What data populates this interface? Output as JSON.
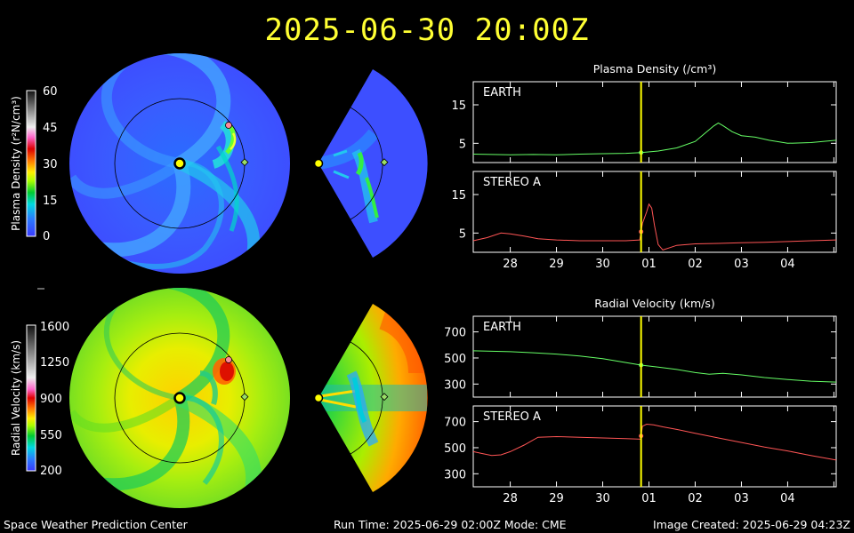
{
  "header": {
    "timestamp": "2025-06-30  20:00Z"
  },
  "footer": {
    "org": "Space Weather Prediction Center",
    "run": "Run Time: 2025-06-29 02:00Z  Mode: CME",
    "created": "Image Created: 2025-06-29 04:23Z"
  },
  "colorbars": {
    "density": {
      "label": "Plasma Density (r²N/cm³)",
      "ticks": [
        "60",
        "45",
        "30",
        "15",
        "0"
      ]
    },
    "velocity": {
      "label": "Radial Velocity (km/s)",
      "ticks": [
        "1600",
        "1250",
        "900",
        "550",
        "200"
      ]
    }
  },
  "colors": {
    "earth": "#66ff66",
    "stereo": "#ff5555",
    "time_marker": "#ffff00",
    "title": "#ffff33"
  },
  "chart_data": [
    {
      "type": "line",
      "title": "Plasma Density (/cm³)",
      "panel": "EARTH",
      "x_tick_labels": [
        "28",
        "29",
        "30",
        "01",
        "02",
        "03",
        "04"
      ],
      "xlim": [
        27.2,
        35.05
      ],
      "ylim": [
        0,
        21
      ],
      "y_ticks": [
        5,
        15
      ],
      "current_time": 30.83,
      "series": [
        {
          "color": "#66ff66",
          "x": [
            27.2,
            28,
            28.5,
            29,
            29.5,
            30,
            30.5,
            30.83,
            31.2,
            31.6,
            32,
            32.2,
            32.4,
            32.5,
            32.6,
            32.8,
            33,
            33.3,
            33.6,
            34,
            34.5,
            35.05
          ],
          "y": [
            2.2,
            2.0,
            2.1,
            2.0,
            2.2,
            2.3,
            2.4,
            2.6,
            3.0,
            3.8,
            5.5,
            7.5,
            9.5,
            10.3,
            9.6,
            8.0,
            7.0,
            6.6,
            5.8,
            5.0,
            5.2,
            5.8
          ]
        }
      ]
    },
    {
      "type": "line",
      "panel": "STEREO A",
      "x_tick_labels": [
        "28",
        "29",
        "30",
        "01",
        "02",
        "03",
        "04"
      ],
      "xlim": [
        27.2,
        35.05
      ],
      "ylim": [
        0,
        21
      ],
      "y_ticks": [
        5,
        15
      ],
      "current_time": 30.83,
      "series": [
        {
          "color": "#ff5555",
          "x": [
            27.2,
            27.5,
            27.8,
            28,
            28.3,
            28.6,
            29,
            29.5,
            30,
            30.5,
            30.8,
            30.86,
            30.95,
            31.0,
            31.06,
            31.12,
            31.2,
            31.3,
            31.45,
            31.6,
            32,
            32.5,
            33,
            33.5,
            34,
            34.5,
            35.05
          ],
          "y": [
            3.0,
            3.8,
            5.0,
            4.8,
            4.2,
            3.5,
            3.2,
            3.0,
            3.0,
            3.0,
            3.2,
            7.5,
            10.5,
            12.5,
            11.5,
            7.0,
            2.0,
            0.6,
            1.2,
            1.8,
            2.2,
            2.3,
            2.5,
            2.6,
            2.8,
            3.0,
            3.2
          ]
        }
      ]
    },
    {
      "type": "line",
      "title": "Radial Velocity (km/s)",
      "panel": "EARTH",
      "x_tick_labels": [
        "28",
        "29",
        "30",
        "01",
        "02",
        "03",
        "04"
      ],
      "xlim": [
        27.2,
        35.05
      ],
      "ylim": [
        200,
        820
      ],
      "y_ticks": [
        300,
        500,
        700
      ],
      "current_time": 30.83,
      "series": [
        {
          "color": "#66ff66",
          "x": [
            27.2,
            28,
            28.5,
            29,
            29.5,
            30,
            30.5,
            30.83,
            31.2,
            31.6,
            32,
            32.3,
            32.6,
            33,
            33.5,
            34,
            34.5,
            35.05
          ],
          "y": [
            555,
            548,
            540,
            530,
            515,
            495,
            465,
            445,
            430,
            412,
            388,
            375,
            382,
            370,
            350,
            335,
            322,
            315
          ]
        }
      ]
    },
    {
      "type": "line",
      "panel": "STEREO A",
      "x_tick_labels": [
        "28",
        "29",
        "30",
        "01",
        "02",
        "03",
        "04"
      ],
      "xlim": [
        27.2,
        35.05
      ],
      "ylim": [
        200,
        820
      ],
      "y_ticks": [
        300,
        500,
        700
      ],
      "current_time": 30.83,
      "series": [
        {
          "color": "#ff5555",
          "x": [
            27.2,
            27.4,
            27.6,
            27.8,
            28.0,
            28.3,
            28.6,
            29,
            29.5,
            30,
            30.5,
            30.82,
            30.86,
            30.95,
            31.1,
            31.3,
            31.6,
            32,
            32.5,
            33,
            33.5,
            34,
            34.5,
            35.05
          ],
          "y": [
            470,
            455,
            440,
            445,
            470,
            520,
            580,
            585,
            580,
            575,
            570,
            565,
            665,
            680,
            675,
            660,
            640,
            610,
            575,
            540,
            505,
            475,
            440,
            405
          ]
        }
      ]
    }
  ]
}
